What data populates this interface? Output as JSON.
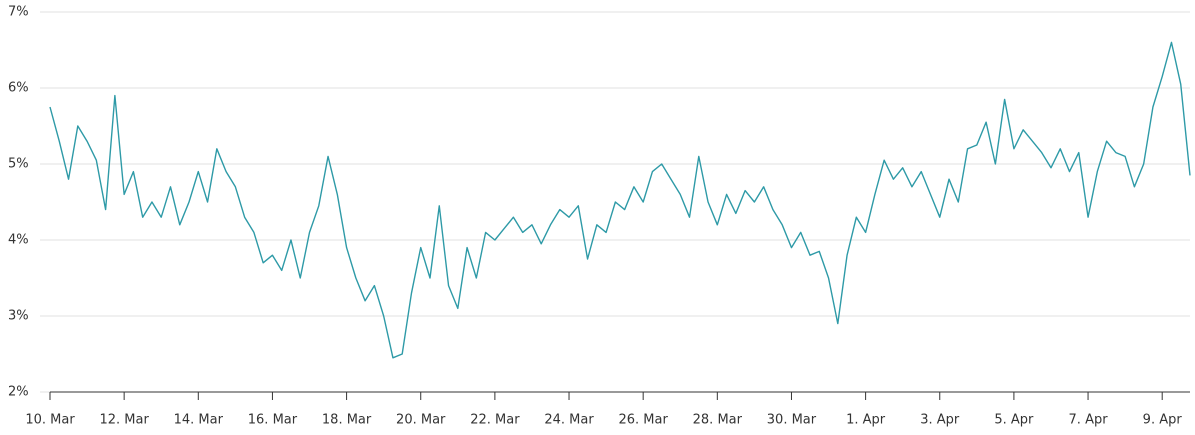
{
  "chart_data": {
    "type": "line",
    "categories": [
      "10. Mar",
      null,
      null,
      null,
      null,
      null,
      null,
      null,
      "12. Mar",
      null,
      null,
      null,
      null,
      null,
      null,
      null,
      "14. Mar",
      null,
      null,
      null,
      null,
      null,
      null,
      null,
      "16. Mar",
      null,
      null,
      null,
      null,
      null,
      null,
      null,
      "18. Mar",
      null,
      null,
      null,
      null,
      null,
      null,
      null,
      "20. Mar",
      null,
      null,
      null,
      null,
      null,
      null,
      null,
      "22. Mar",
      null,
      null,
      null,
      null,
      null,
      null,
      null,
      "24. Mar",
      null,
      null,
      null,
      null,
      null,
      null,
      null,
      "26. Mar",
      null,
      null,
      null,
      null,
      null,
      null,
      null,
      "28. Mar",
      null,
      null,
      null,
      null,
      null,
      null,
      null,
      "30. Mar",
      null,
      null,
      null,
      null,
      null,
      null,
      null,
      "1. Apr",
      null,
      null,
      null,
      null,
      null,
      null,
      null,
      "3. Apr",
      null,
      null,
      null,
      null,
      null,
      null,
      null,
      "5. Apr",
      null,
      null,
      null,
      null,
      null,
      null,
      null,
      "7. Apr",
      null,
      null,
      null,
      null,
      null,
      null,
      null,
      "9. Apr",
      null,
      null,
      null
    ],
    "values": [
      5.75,
      5.3,
      4.8,
      5.5,
      5.3,
      5.05,
      4.4,
      5.9,
      4.6,
      4.9,
      4.3,
      4.5,
      4.3,
      4.7,
      4.2,
      4.5,
      4.9,
      4.5,
      5.2,
      4.9,
      4.7,
      4.3,
      4.1,
      3.7,
      3.8,
      3.6,
      4.0,
      3.5,
      4.1,
      4.45,
      5.1,
      4.6,
      3.9,
      3.5,
      3.2,
      3.4,
      3.0,
      2.45,
      2.5,
      3.3,
      3.9,
      3.5,
      4.45,
      3.4,
      3.1,
      3.9,
      3.5,
      4.1,
      4.0,
      4.15,
      4.3,
      4.1,
      4.2,
      3.95,
      4.2,
      4.4,
      4.3,
      4.45,
      3.75,
      4.2,
      4.1,
      4.5,
      4.4,
      4.7,
      4.5,
      4.9,
      5.0,
      4.8,
      4.6,
      4.3,
      5.1,
      4.5,
      4.2,
      4.6,
      4.35,
      4.65,
      4.5,
      4.7,
      4.4,
      4.2,
      3.9,
      4.1,
      3.8,
      3.85,
      3.5,
      2.9,
      3.8,
      4.3,
      4.1,
      4.6,
      5.05,
      4.8,
      4.95,
      4.7,
      4.9,
      4.6,
      4.3,
      4.8,
      4.5,
      5.2,
      5.25,
      5.55,
      5.0,
      5.85,
      5.2,
      5.45,
      5.3,
      5.15,
      4.95,
      5.2,
      4.9,
      5.15,
      4.3,
      4.9,
      5.3,
      5.15,
      5.1,
      4.7,
      5.0,
      5.75,
      6.15,
      6.6,
      6.05,
      4.85
    ],
    "color": "#2e9aa7",
    "ylim": [
      2,
      7
    ],
    "yticks": [
      {
        "value": 2,
        "label": "2%"
      },
      {
        "value": 3,
        "label": "3%"
      },
      {
        "value": 4,
        "label": "4%"
      },
      {
        "value": 5,
        "label": "5%"
      },
      {
        "value": 6,
        "label": "6%"
      },
      {
        "value": 7,
        "label": "7%"
      }
    ],
    "grid": true
  }
}
